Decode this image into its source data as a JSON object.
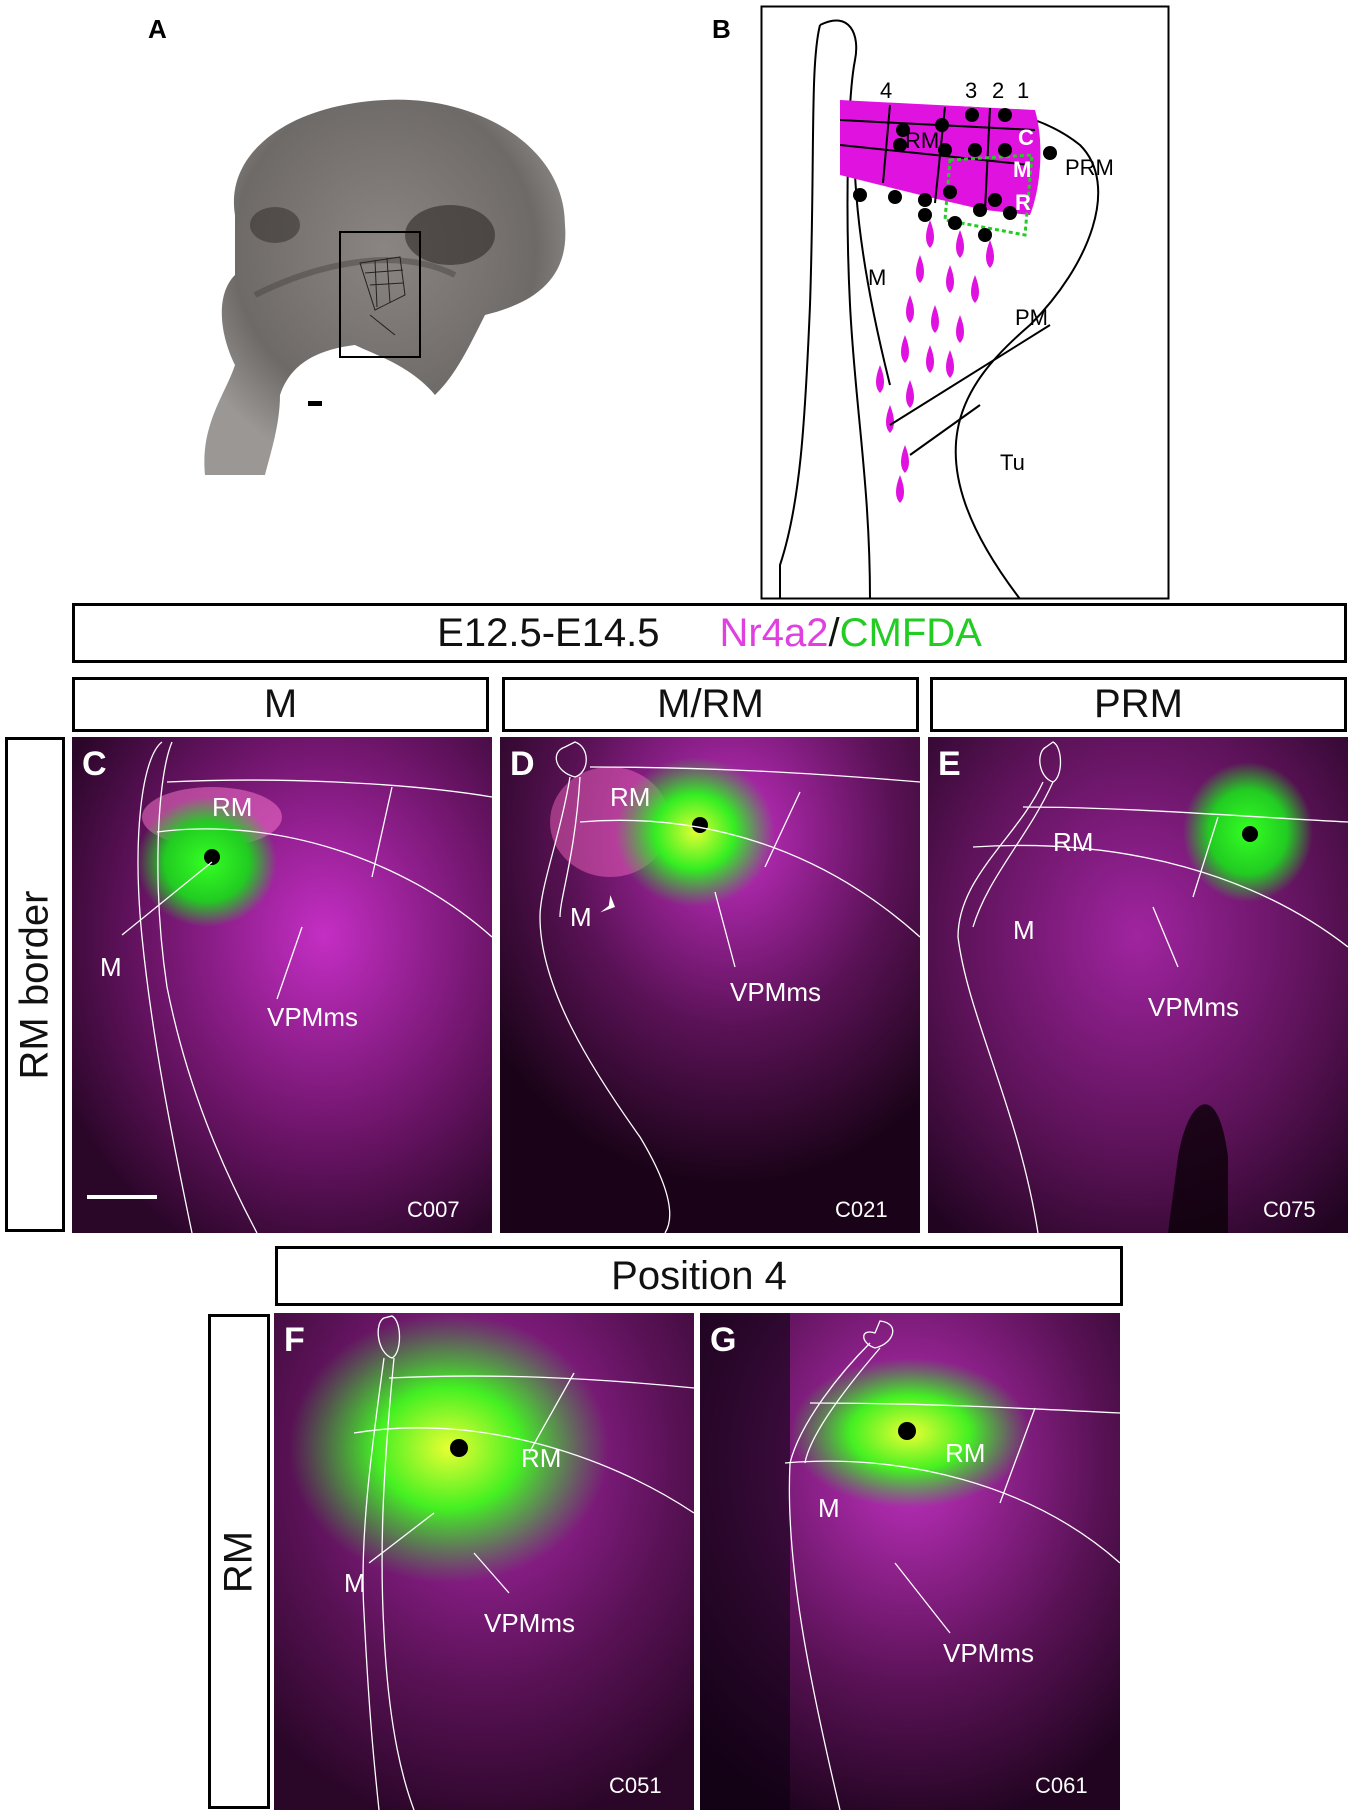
{
  "panels": {
    "A": {
      "letter": "A"
    },
    "B": {
      "letter": "B",
      "positions": [
        "4",
        "3",
        "2",
        "1"
      ],
      "labels": {
        "rm": "RM",
        "c": "C",
        "m_sub": "M",
        "r": "R",
        "prm": "PRM",
        "m": "M",
        "pm": "PM",
        "tu": "Tu"
      }
    },
    "C": {
      "letter": "C",
      "code": "C007",
      "labels": {
        "rm": "RM",
        "m": "M",
        "vpm": "VPMms"
      }
    },
    "D": {
      "letter": "D",
      "code": "C021",
      "labels": {
        "rm": "RM",
        "m": "M",
        "vpm": "VPMms"
      }
    },
    "E": {
      "letter": "E",
      "code": "C075",
      "labels": {
        "rm": "RM",
        "m": "M",
        "vpm": "VPMms"
      }
    },
    "F": {
      "letter": "F",
      "code": "C051",
      "labels": {
        "rm": "RM",
        "m": "M",
        "vpm": "VPMms"
      }
    },
    "G": {
      "letter": "G",
      "code": "C061",
      "labels": {
        "rm": "RM",
        "m": "M",
        "vpm": "VPMms"
      }
    }
  },
  "header": {
    "age": "E12.5-E14.5",
    "marker1": "Nr4a2",
    "sep": "/",
    "marker2": "CMFDA"
  },
  "columns": [
    "M",
    "M/RM",
    "PRM"
  ],
  "row_labels": {
    "row1": "RM border",
    "row2": "RM"
  },
  "position_header": "Position 4",
  "colors": {
    "magenta": "#e040e0",
    "green": "#33ee22",
    "dark_bg": "#1a0317"
  }
}
